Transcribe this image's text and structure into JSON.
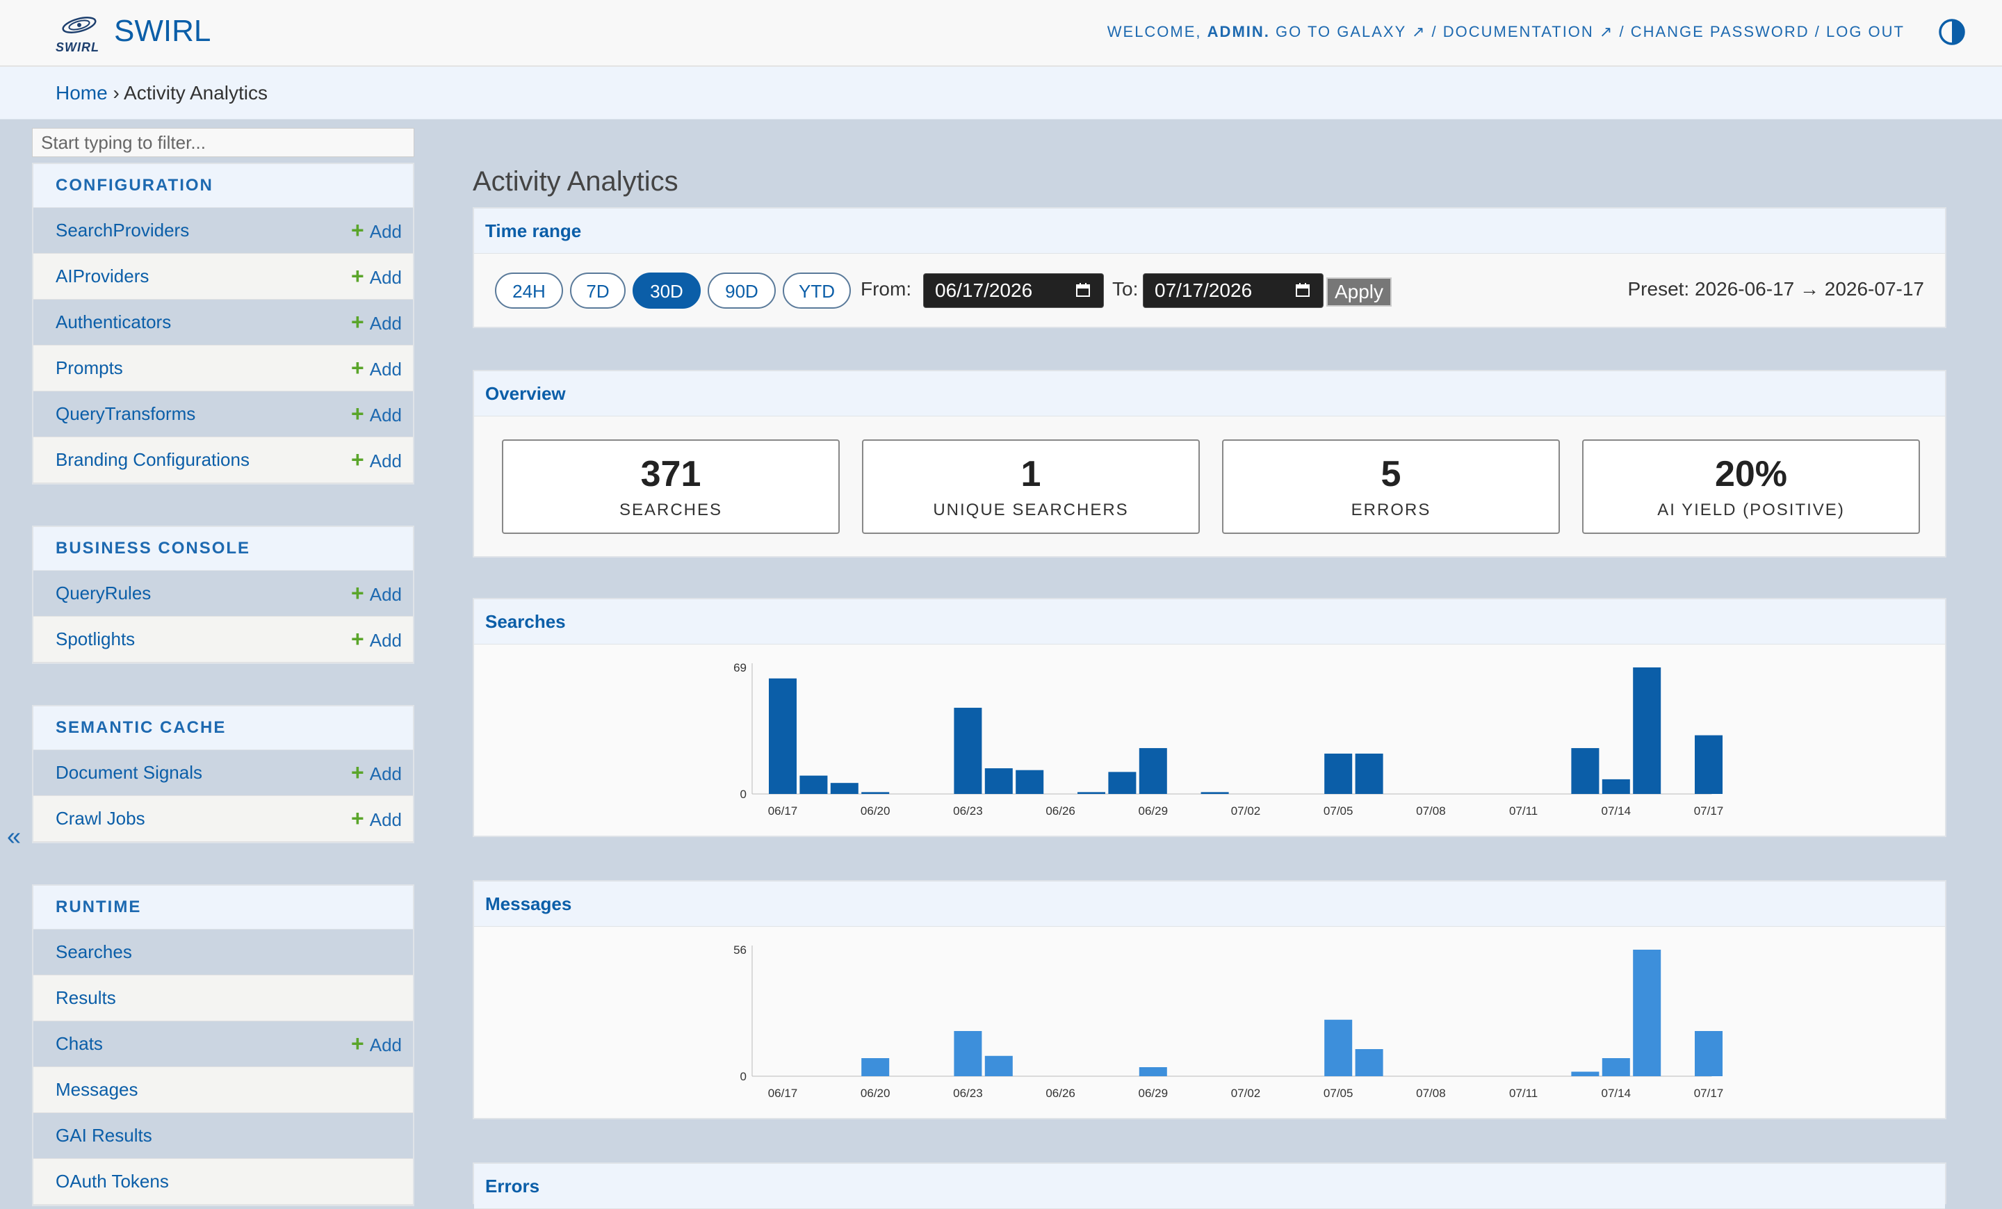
{
  "header": {
    "brand": "SWIRL",
    "logo_text": "SWIRL",
    "welcome": "WELCOME,",
    "username": "ADMIN.",
    "links": "GO TO GALAXY ↗ / DOCUMENTATION ↗ / CHANGE PASSWORD / LOG OUT",
    "theme_icon": "half-circle-contrast-icon"
  },
  "breadcrumb": {
    "home": "Home",
    "separator": "›",
    "current": "Activity Analytics"
  },
  "sidebar": {
    "filter_placeholder": "Start typing to filter...",
    "add_label": "Add",
    "collapse_label": "«",
    "sections": [
      {
        "caption": "CONFIGURATION",
        "items": [
          {
            "label": "SearchProviders",
            "add": true
          },
          {
            "label": "AIProviders",
            "add": true
          },
          {
            "label": "Authenticators",
            "add": true
          },
          {
            "label": "Prompts",
            "add": true
          },
          {
            "label": "QueryTransforms",
            "add": true
          },
          {
            "label": "Branding Configurations",
            "add": true
          }
        ]
      },
      {
        "caption": "BUSINESS CONSOLE",
        "items": [
          {
            "label": "QueryRules",
            "add": true
          },
          {
            "label": "Spotlights",
            "add": true
          }
        ]
      },
      {
        "caption": "SEMANTIC CACHE",
        "items": [
          {
            "label": "Document Signals",
            "add": true
          },
          {
            "label": "Crawl Jobs",
            "add": true
          }
        ]
      },
      {
        "caption": "RUNTIME",
        "items": [
          {
            "label": "Searches",
            "add": false
          },
          {
            "label": "Results",
            "add": false
          },
          {
            "label": "Chats",
            "add": true
          },
          {
            "label": "Messages",
            "add": false
          },
          {
            "label": "GAI Results",
            "add": false
          },
          {
            "label": "OAuth Tokens",
            "add": false
          }
        ]
      }
    ]
  },
  "main": {
    "title": "Activity Analytics",
    "time_range": {
      "heading": "Time range",
      "presets": [
        "24H",
        "7D",
        "30D",
        "90D",
        "YTD"
      ],
      "active_preset": "30D",
      "from_label": "From:",
      "from_value": "06/17/2026",
      "to_label": "To:",
      "to_value": "07/17/2026",
      "apply_label": "Apply",
      "preset_text": "Preset: 2026-06-17 → 2026-07-17"
    },
    "overview": {
      "heading": "Overview",
      "stats": [
        {
          "value": "371",
          "label": "SEARCHES"
        },
        {
          "value": "1",
          "label": "UNIQUE SEARCHERS"
        },
        {
          "value": "5",
          "label": "ERRORS"
        },
        {
          "value": "20%",
          "label": "AI YIELD (POSITIVE)"
        }
      ]
    },
    "errors_heading": "Errors"
  },
  "chart_data": [
    {
      "type": "bar",
      "title": "Searches",
      "color": "#0b5ea8",
      "x": [
        "06/17",
        "06/18",
        "06/19",
        "06/20",
        "06/21",
        "06/22",
        "06/23",
        "06/24",
        "06/25",
        "06/26",
        "06/27",
        "06/28",
        "06/29",
        "06/30",
        "07/01",
        "07/02",
        "07/03",
        "07/04",
        "07/05",
        "07/06",
        "07/07",
        "07/08",
        "07/09",
        "07/10",
        "07/11",
        "07/12",
        "07/13",
        "07/14",
        "07/15",
        "07/16",
        "07/17"
      ],
      "values": [
        63,
        10,
        6,
        1,
        0,
        0,
        47,
        14,
        13,
        0,
        1,
        12,
        25,
        0,
        1,
        0,
        0,
        0,
        22,
        22,
        0,
        0,
        0,
        0,
        0,
        0,
        25,
        8,
        69,
        0,
        32
      ],
      "ylim": [
        0,
        69
      ],
      "yticks": [
        0,
        69
      ],
      "xticks": [
        "06/17",
        "06/20",
        "06/23",
        "06/26",
        "06/29",
        "07/02",
        "07/05",
        "07/08",
        "07/11",
        "07/14",
        "07/17"
      ]
    },
    {
      "type": "bar",
      "title": "Messages",
      "color": "#3d8fdb",
      "x": [
        "06/17",
        "06/18",
        "06/19",
        "06/20",
        "06/21",
        "06/22",
        "06/23",
        "06/24",
        "06/25",
        "06/26",
        "06/27",
        "06/28",
        "06/29",
        "06/30",
        "07/01",
        "07/02",
        "07/03",
        "07/04",
        "07/05",
        "07/06",
        "07/07",
        "07/08",
        "07/09",
        "07/10",
        "07/11",
        "07/12",
        "07/13",
        "07/14",
        "07/15",
        "07/16",
        "07/17"
      ],
      "values": [
        0,
        0,
        0,
        8,
        0,
        0,
        20,
        9,
        0,
        0,
        0,
        0,
        4,
        0,
        0,
        0,
        0,
        0,
        25,
        12,
        0,
        0,
        0,
        0,
        0,
        0,
        2,
        8,
        56,
        0,
        20
      ],
      "ylim": [
        0,
        56
      ],
      "yticks": [
        0,
        56
      ],
      "xticks": [
        "06/17",
        "06/20",
        "06/23",
        "06/26",
        "06/29",
        "07/02",
        "07/05",
        "07/08",
        "07/11",
        "07/14",
        "07/17"
      ]
    }
  ]
}
